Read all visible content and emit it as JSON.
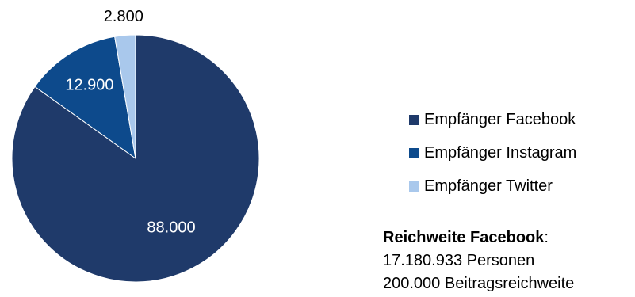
{
  "chart_data": {
    "type": "pie",
    "title": "",
    "slices": [
      {
        "label": "Empfänger Facebook",
        "value": 88000,
        "display": "88.000",
        "color": "#1f3a6a"
      },
      {
        "label": "Empfänger Instagram",
        "value": 12900,
        "display": "12.900",
        "color": "#0d4a8c"
      },
      {
        "label": "Empfänger Twitter",
        "value": 2800,
        "display": "2.800",
        "color": "#a9c8ec"
      }
    ],
    "legend_position": "right"
  },
  "note": {
    "title": "Reichweite Facebook",
    "colon": ":",
    "line1": "17.180.933 Personen",
    "line2": "200.000 Beitragsreichweite"
  }
}
